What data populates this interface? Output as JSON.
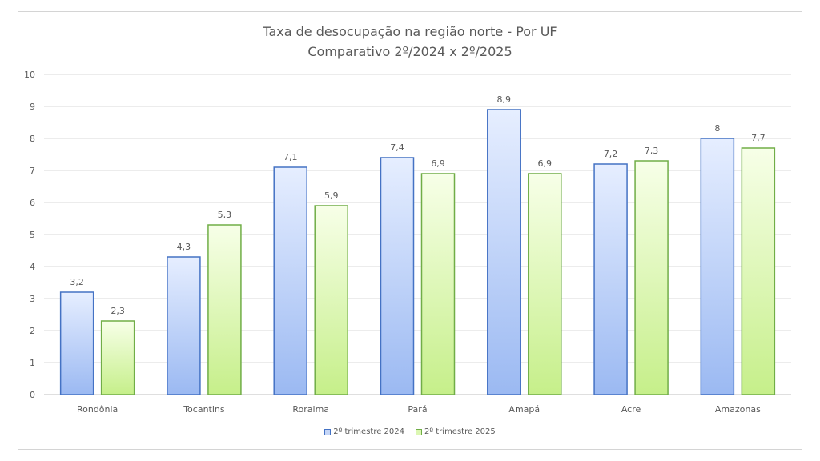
{
  "chart_data": {
    "type": "bar",
    "title": "Taxa de desocupação  na região norte - Por UF",
    "subtitle": "Comparativo  2º/2024 x 2º/2025",
    "categories": [
      "Rondônia",
      "Tocantins",
      "Roraima",
      "Pará",
      "Amapá",
      "Acre",
      "Amazonas"
    ],
    "series": [
      {
        "name": "2º trimestre 2024",
        "values": [
          3.2,
          4.3,
          7.1,
          7.4,
          8.9,
          7.2,
          8
        ],
        "labels": [
          "3,2",
          "4,3",
          "7,1",
          "7,4",
          "8,9",
          "7,2",
          "8"
        ],
        "color": "#4472c4",
        "fill_top": "#e6eeff",
        "fill_bottom": "#9bb9f2"
      },
      {
        "name": "2º trimestre 2025",
        "values": [
          2.3,
          5.3,
          5.9,
          6.9,
          6.9,
          7.3,
          7.7
        ],
        "labels": [
          "2,3",
          "5,3",
          "5,9",
          "6,9",
          "6,9",
          "7,3",
          "7,7"
        ],
        "color": "#70ad47",
        "fill_top": "#f7ffe8",
        "fill_bottom": "#c6ef8a"
      }
    ],
    "ylim": [
      0,
      10
    ],
    "yticks": [
      "0",
      "1",
      "2",
      "3",
      "4",
      "5",
      "6",
      "7",
      "8",
      "9",
      "10"
    ],
    "grid": true,
    "legend": "bottom"
  }
}
